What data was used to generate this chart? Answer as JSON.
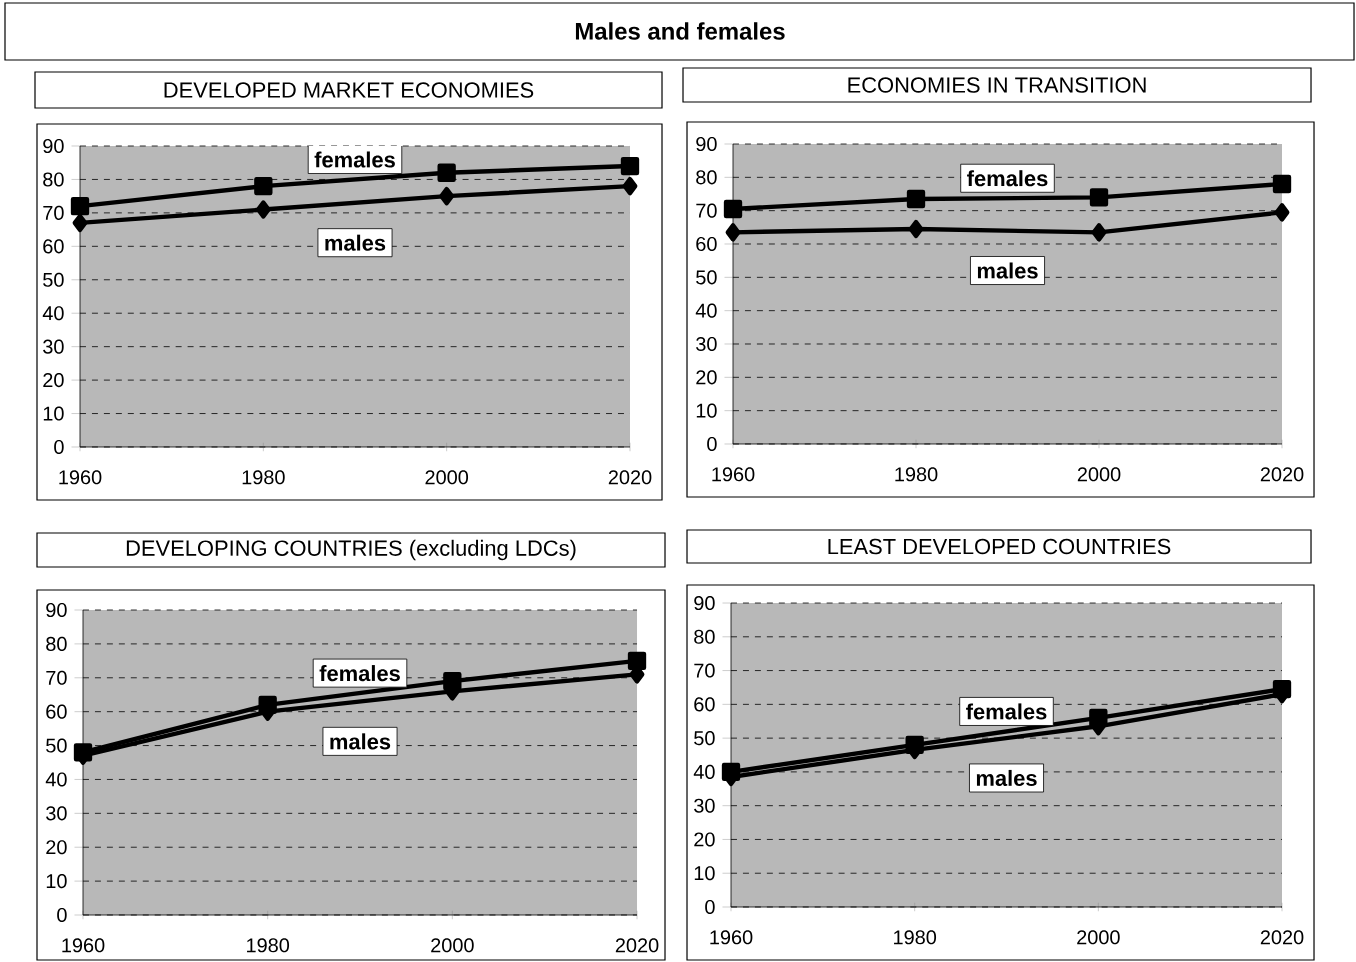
{
  "chart_data": [
    {
      "type": "line",
      "title": "DEVELOPED MARKET ECONOMIES",
      "annotations": [
        "Males and females"
      ],
      "x": [
        1960,
        1980,
        2000,
        2020
      ],
      "series": [
        {
          "name": "females",
          "color": "#000000",
          "marker": "square",
          "values": [
            72,
            78,
            82,
            84
          ]
        },
        {
          "name": "males",
          "color": "#000000",
          "marker": "diamond",
          "values": [
            67,
            71,
            75,
            78
          ]
        }
      ],
      "xlim": [
        1960,
        2020
      ],
      "ylim": [
        0,
        90
      ],
      "xticks": [
        1960,
        1980,
        2000,
        2020
      ],
      "yticks": [
        0,
        10,
        20,
        30,
        40,
        50,
        60,
        70,
        80,
        90
      ],
      "grid": "y"
    },
    {
      "type": "line",
      "title": "ECONOMIES IN TRANSITION",
      "x": [
        1960,
        1980,
        2000,
        2020
      ],
      "series": [
        {
          "name": "females",
          "color": "#000000",
          "marker": "square",
          "values": [
            70.5,
            73.5,
            74,
            78
          ]
        },
        {
          "name": "males",
          "color": "#000000",
          "marker": "diamond",
          "values": [
            63.5,
            64.5,
            63.5,
            69.5
          ]
        }
      ],
      "xlim": [
        1960,
        2020
      ],
      "ylim": [
        0,
        90
      ],
      "xticks": [
        1960,
        1980,
        2000,
        2020
      ],
      "yticks": [
        0,
        10,
        20,
        30,
        40,
        50,
        60,
        70,
        80,
        90
      ],
      "grid": "y"
    },
    {
      "type": "line",
      "title": "DEVELOPING COUNTRIES (excluding LDCs)",
      "x": [
        1960,
        1980,
        2000,
        2020
      ],
      "series": [
        {
          "name": "females",
          "color": "#000000",
          "marker": "square",
          "values": [
            48,
            62,
            69,
            75
          ]
        },
        {
          "name": "males",
          "color": "#000000",
          "marker": "diamond",
          "values": [
            47,
            60,
            66,
            71
          ]
        }
      ],
      "xlim": [
        1960,
        2020
      ],
      "ylim": [
        0,
        90
      ],
      "xticks": [
        1960,
        1980,
        2000,
        2020
      ],
      "yticks": [
        0,
        10,
        20,
        30,
        40,
        50,
        60,
        70,
        80,
        90
      ],
      "grid": "y"
    },
    {
      "type": "line",
      "title": "LEAST DEVELOPED COUNTRIES",
      "x": [
        1960,
        1980,
        2000,
        2020
      ],
      "series": [
        {
          "name": "females",
          "color": "#000000",
          "marker": "square",
          "values": [
            40,
            48,
            56,
            64.5
          ]
        },
        {
          "name": "males",
          "color": "#000000",
          "marker": "diamond",
          "values": [
            38.5,
            46.5,
            53.5,
            63
          ]
        }
      ],
      "xlim": [
        1960,
        2020
      ],
      "ylim": [
        0,
        90
      ],
      "xticks": [
        1960,
        1980,
        2000,
        2020
      ],
      "yticks": [
        0,
        10,
        20,
        30,
        40,
        50,
        60,
        70,
        80,
        90
      ],
      "grid": "y"
    }
  ]
}
